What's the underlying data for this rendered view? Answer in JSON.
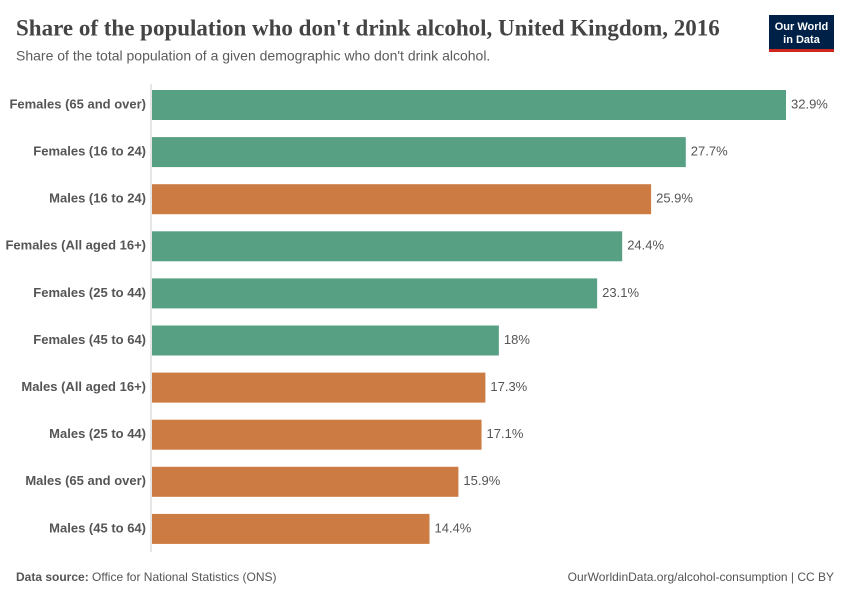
{
  "chart_data": {
    "type": "bar",
    "orientation": "horizontal",
    "title": "Share of the population who don't drink alcohol, United Kingdom, 2016",
    "subtitle": "Share of the total population of a given demographic who don't drink alcohol.",
    "categories": [
      "Females (65 and over)",
      "Females (16 to 24)",
      "Males (16 to 24)",
      "Females (All aged 16+)",
      "Females (25 to 44)",
      "Females (45 to 64)",
      "Males (All aged 16+)",
      "Males (25 to 44)",
      "Males (65 and over)",
      "Males (45 to 64)"
    ],
    "values": [
      32.9,
      27.7,
      25.9,
      24.4,
      23.1,
      18,
      17.3,
      17.1,
      15.9,
      14.4
    ],
    "value_labels": [
      "32.9%",
      "27.7%",
      "25.9%",
      "24.4%",
      "23.1%",
      "18%",
      "17.3%",
      "17.1%",
      "15.9%",
      "14.4%"
    ],
    "colors": [
      "#58a083",
      "#58a083",
      "#cc7b43",
      "#58a083",
      "#58a083",
      "#58a083",
      "#cc7b43",
      "#cc7b43",
      "#cc7b43",
      "#cc7b43"
    ],
    "source_label": "Data source:",
    "source": "Office for National Statistics (ONS)",
    "credit": "OurWorldinData.org/alcohol-consumption | CC BY",
    "logo": [
      "Our World",
      "in Data"
    ]
  }
}
